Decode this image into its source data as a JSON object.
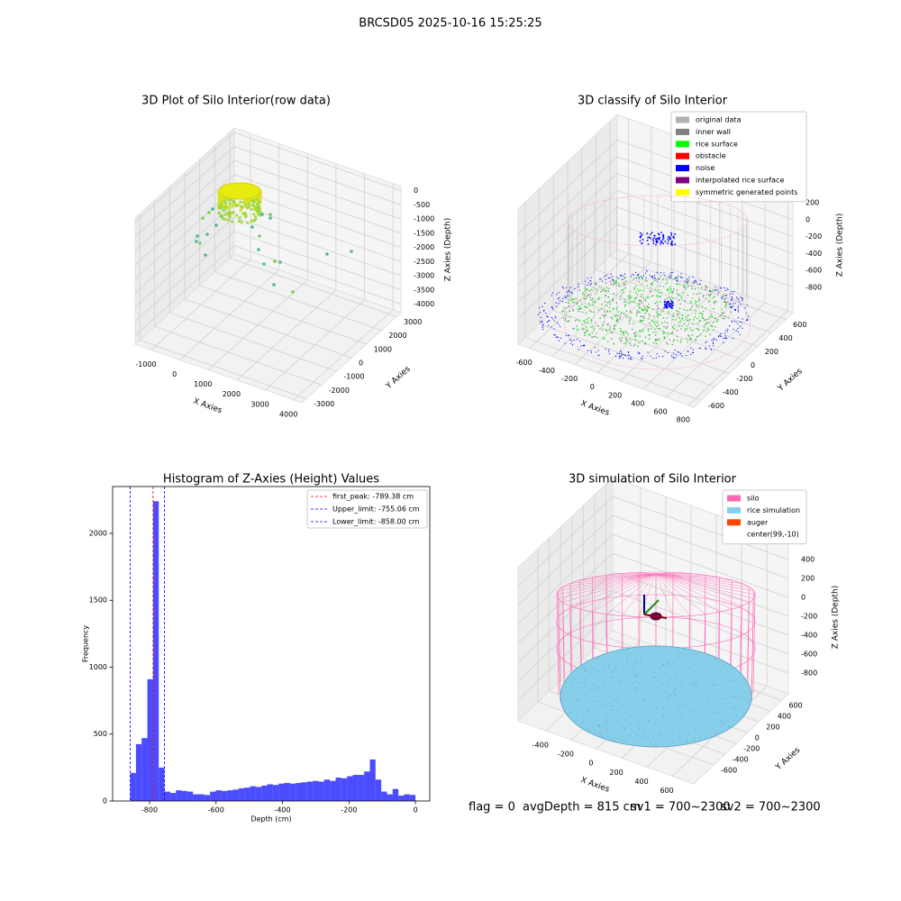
{
  "title": "BRCSD05 2025-10-16 15:25:25",
  "footer": [
    "flag = 0",
    "avgDepth = 815 cm",
    "sv1 = 700~2300",
    "sv2 = 700~2300"
  ],
  "chart_data": [
    {
      "type": "scatter3d",
      "title": "3D Plot of Silo Interior(row data)",
      "xlabel": "X Axies",
      "ylabel": "Y Axies",
      "zlabel": "Z Axies (Depth)",
      "xlim": [
        -1570,
        4280
      ],
      "ylim": [
        -3300,
        3300
      ],
      "zlim": [
        -4300,
        150
      ],
      "xticks": [
        -1000,
        0,
        1000,
        2000,
        3000,
        4000
      ],
      "yticks": [
        -3000,
        -2000,
        -1000,
        0,
        1000,
        2000,
        3000
      ],
      "zticks": [
        0,
        -500,
        -1000,
        -1500,
        -2000,
        -2500,
        -3000,
        -3500,
        -4000
      ]
    },
    {
      "type": "scatter3d",
      "title": "3D classify of Silo Interior",
      "xlabel": "X Axies",
      "ylabel": "Y Axies",
      "zlabel": "Z Axies (Depth)",
      "xlim": [
        -700,
        845
      ],
      "ylim": [
        -700,
        700
      ],
      "zlim": [
        -1100,
        500
      ],
      "xticks": [
        -600,
        -400,
        -200,
        0,
        200,
        400,
        600,
        800
      ],
      "yticks": [
        -600,
        -400,
        -200,
        0,
        200,
        400,
        600
      ],
      "zticks": [
        -800,
        -600,
        -400,
        -200,
        0,
        200
      ],
      "legend_items": [
        {
          "name": "original data",
          "color": "#b0b0b0"
        },
        {
          "name": "inner wall",
          "color": "#808080"
        },
        {
          "name": "rice surface",
          "color": "#00ff00"
        },
        {
          "name": "obstacle",
          "color": "#ff0000"
        },
        {
          "name": "noise",
          "color": "#0000ff"
        },
        {
          "name": "interpolated rice surface",
          "color": "#800080"
        },
        {
          "name": "symmetric generated points",
          "color": "#ffff00"
        }
      ]
    },
    {
      "type": "histogram",
      "title": "Histogram of Z-Axies (Height) Values",
      "xlabel": "Depth (cm)",
      "ylabel": "Frequency",
      "color": "#0000ff",
      "bins": [
        -858.0,
        -840.84,
        -823.68,
        -806.52,
        -789.36,
        -772.2,
        -755.04,
        -737.88,
        -720.72,
        -703.56,
        -686.4,
        -669.24,
        -652.08,
        -634.92,
        -617.76,
        -600.6,
        -583.44,
        -566.28,
        -549.12,
        -531.96,
        -514.8,
        -497.64,
        -480.48,
        -463.32,
        -446.16,
        -429.0,
        -411.84,
        -394.68,
        -377.52,
        -360.36,
        -343.2,
        -326.04,
        -308.88,
        -291.72,
        -274.56,
        -257.4,
        -240.24,
        -223.08,
        -205.92,
        -188.76,
        -171.6,
        -154.44,
        -137.28,
        -120.12,
        -102.96,
        -85.8,
        -68.64,
        -51.48,
        -34.32,
        -17.16,
        0
      ],
      "counts": [
        210,
        425,
        470,
        910,
        2240,
        250,
        70,
        60,
        80,
        75,
        70,
        50,
        50,
        45,
        70,
        80,
        75,
        80,
        85,
        95,
        100,
        110,
        105,
        115,
        125,
        120,
        130,
        135,
        130,
        135,
        140,
        145,
        150,
        145,
        160,
        150,
        175,
        170,
        185,
        195,
        195,
        220,
        310,
        160,
        70,
        50,
        90,
        40,
        50,
        45
      ],
      "xlim": [
        -911,
        43
      ],
      "ylim": [
        0,
        2350
      ],
      "xticks": [
        -800,
        -600,
        -400,
        -200,
        0
      ],
      "yticks": [
        0,
        500,
        1000,
        1500,
        2000
      ],
      "legend": "upper right",
      "lines": [
        {
          "name": "first_peak: -789.38 cm",
          "value": -789.38,
          "color": "#ff0000"
        },
        {
          "name": "Upper_limit: -755.06 cm",
          "value": -755.06,
          "color": "#0000ff"
        },
        {
          "name": "Lower_limit: -858.00 cm",
          "value": -858.0,
          "color": "#0000ff"
        }
      ]
    },
    {
      "type": "scatter3d",
      "title": "3D simulation of Silo Interior",
      "xlabel": "X Axies",
      "ylabel": "Y Axies",
      "zlabel": "Z Axies (Depth)",
      "xlim": [
        -620,
        770
      ],
      "ylim": [
        -950,
        720
      ],
      "zlim": [
        -1020,
        600
      ],
      "xticks": [
        -400,
        -200,
        0,
        200,
        400,
        600
      ],
      "yticks": [
        -600,
        -400,
        -200,
        0,
        200,
        400,
        600
      ],
      "zticks": [
        -800,
        -600,
        -400,
        -200,
        0,
        200,
        400
      ],
      "legend_items": [
        {
          "name": "silo",
          "color": "#ff69b4"
        },
        {
          "name": "rice simulation",
          "color": "#87ceeb"
        },
        {
          "name": "auger",
          "color": "#ff4500"
        },
        {
          "name": "center(99,-10)",
          "color": "#ffffff"
        }
      ]
    }
  ]
}
